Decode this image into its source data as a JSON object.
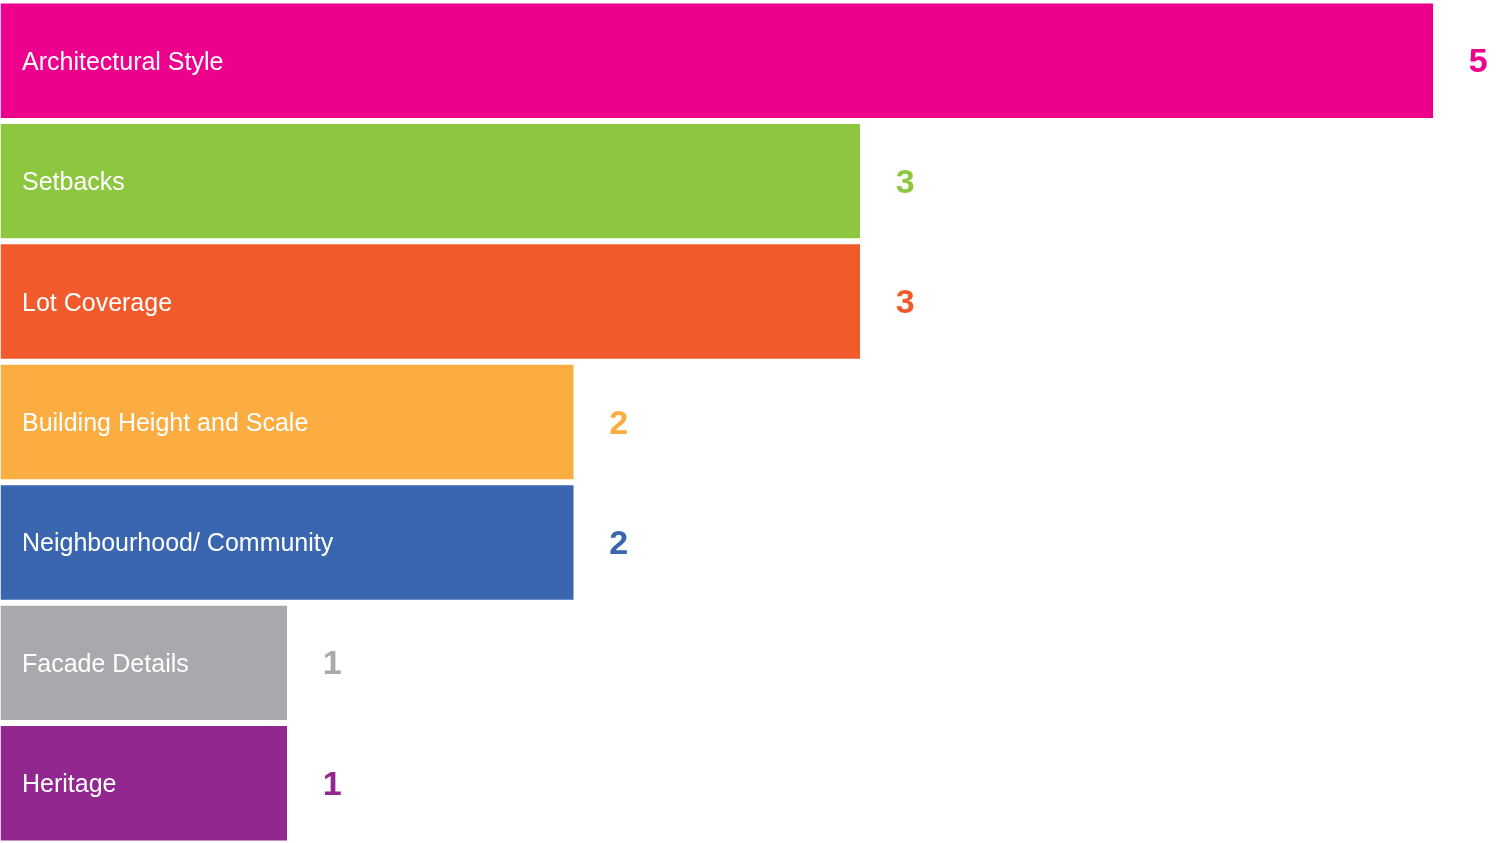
{
  "chart_data": {
    "type": "bar",
    "orientation": "horizontal",
    "categories": [
      "Architectural Style",
      "Setbacks",
      "Lot Coverage",
      "Building Height and Scale",
      "Neighbourhood/ Community",
      "Facade Details",
      "Heritage"
    ],
    "values": [
      5,
      3,
      3,
      2,
      2,
      1,
      1
    ],
    "colors": [
      "#ec008c",
      "#8dc63f",
      "#f15a2b",
      "#fbad41",
      "#3a66b0",
      "#a7a9ac",
      "#92278f"
    ],
    "data_labels": true,
    "tick_labels": false
  }
}
